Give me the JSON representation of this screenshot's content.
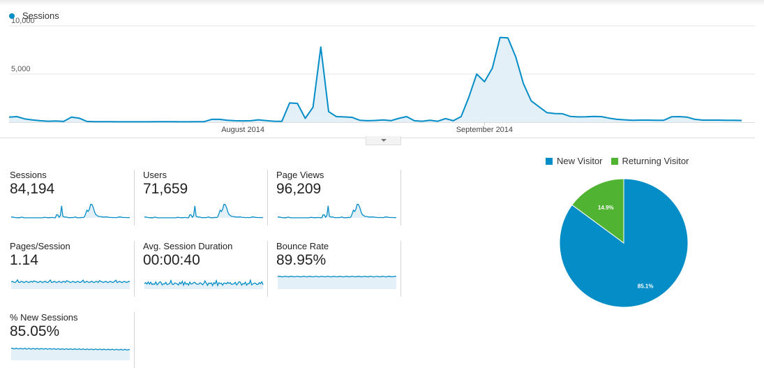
{
  "colors": {
    "accent": "#058dc7",
    "fill": "#e3f0f8",
    "new_visitor": "#058dc7",
    "returning_visitor": "#50b432",
    "grid": "#e5e5e5"
  },
  "chart_data": {
    "type": "area",
    "legend": "Sessions",
    "yticks": [
      {
        "value": 10000,
        "label": "10,000"
      },
      {
        "value": 5000,
        "label": "5,000"
      }
    ],
    "ylim": [
      0,
      10000
    ],
    "xticks": [
      {
        "index": 30,
        "label": "August 2014"
      },
      {
        "index": 61,
        "label": "September 2014"
      }
    ],
    "series": [
      {
        "name": "Sessions",
        "values": [
          520,
          580,
          350,
          230,
          150,
          100,
          120,
          80,
          520,
          420,
          80,
          50,
          50,
          50,
          40,
          40,
          40,
          40,
          40,
          50,
          60,
          50,
          40,
          40,
          50,
          50,
          300,
          300,
          200,
          150,
          140,
          150,
          250,
          160,
          100,
          90,
          2000,
          1950,
          400,
          1550,
          7800,
          1100,
          580,
          550,
          500,
          200,
          150,
          180,
          240,
          160,
          400,
          580,
          150,
          100,
          200,
          100,
          380,
          150,
          580,
          2600,
          5000,
          4200,
          5600,
          8800,
          8750,
          6800,
          4000,
          2200,
          1600,
          1000,
          900,
          880,
          600,
          550,
          560,
          600,
          580,
          420,
          300,
          250,
          200,
          220,
          220,
          200,
          200,
          560,
          580,
          520,
          300,
          220,
          220,
          220,
          200,
          200,
          180
        ]
      }
    ]
  },
  "metrics": [
    {
      "label": "Sessions",
      "value": "84,194"
    },
    {
      "label": "Users",
      "value": "71,659"
    },
    {
      "label": "Page Views",
      "value": "96,209"
    },
    {
      "label": "Pages/Session",
      "value": "1.14"
    },
    {
      "label": "Avg. Session Duration",
      "value": "00:00:40"
    },
    {
      "label": "Bounce Rate",
      "value": "89.95%"
    },
    {
      "label": "% New Sessions",
      "value": "85.05%"
    }
  ],
  "pie": {
    "legend": [
      {
        "label": "New Visitor"
      },
      {
        "label": "Returning Visitor"
      }
    ],
    "slices": [
      {
        "label": "New Visitor",
        "value": 85.1,
        "text": "85.1%"
      },
      {
        "label": "Returning Visitor",
        "value": 14.9,
        "text": "14.9%"
      }
    ]
  }
}
